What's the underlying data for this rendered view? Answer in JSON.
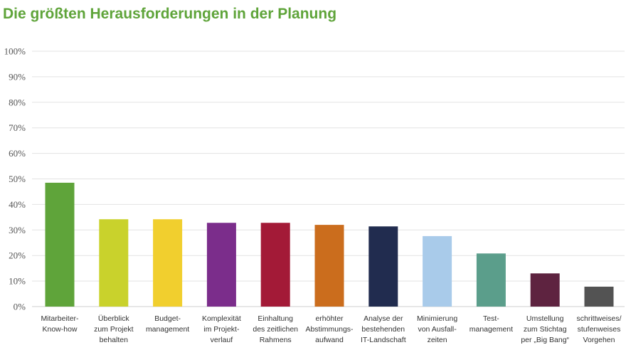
{
  "chart_data": {
    "type": "bar",
    "title": "Die größten Herausforderungen in der Planung",
    "ylim": [
      0,
      100
    ],
    "y_ticks": [
      "0%",
      "10%",
      "20%",
      "30%",
      "40%",
      "50%",
      "60%",
      "70%",
      "80%",
      "90%",
      "100%"
    ],
    "grid": true,
    "categories": [
      [
        "Mitarbeiter-",
        "Know-how"
      ],
      [
        "Überblick",
        "zum Projekt",
        "behalten"
      ],
      [
        "Budget-",
        "management"
      ],
      [
        "Komplexität",
        "im Projekt-",
        "verlauf"
      ],
      [
        "Einhaltung",
        "des zeitlichen",
        "Rahmens"
      ],
      [
        "erhöhter",
        "Abstimmungs-",
        "aufwand"
      ],
      [
        "Analyse der",
        "bestehenden",
        "IT-Landschaft"
      ],
      [
        "Minimierung",
        "von Ausfall-",
        "zeiten"
      ],
      [
        "Test-",
        "management"
      ],
      [
        "Umstellung",
        "zum Stichtag",
        "per „Big Bang“"
      ],
      [
        "schrittweises/",
        "stufenweises",
        "Vorgehen"
      ]
    ],
    "values": [
      48.5,
      34.2,
      34.2,
      32.8,
      32.8,
      32.0,
      31.4,
      27.6,
      20.8,
      13.0,
      7.8
    ],
    "colors": [
      "#5fa43a",
      "#c9d22c",
      "#f1cf2e",
      "#7b2d8b",
      "#a31a37",
      "#cb6d1d",
      "#212c4f",
      "#a9cbea",
      "#5b9e8b",
      "#5e2340",
      "#535353"
    ]
  }
}
